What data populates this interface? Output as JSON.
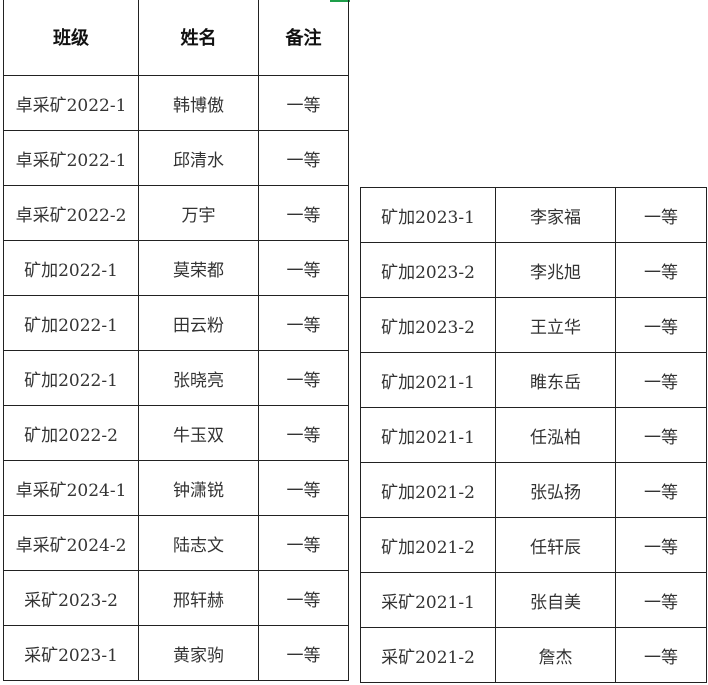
{
  "header": {
    "class": "班级",
    "name": "姓名",
    "note": "备注"
  },
  "left_rows": [
    {
      "class": "卓采矿2022-1",
      "name": "韩博傲",
      "note": "一等"
    },
    {
      "class": "卓采矿2022-1",
      "name": "邱清水",
      "note": "一等"
    },
    {
      "class": "卓采矿2022-2",
      "name": "万宇",
      "note": "一等"
    },
    {
      "class": "矿加2022-1",
      "name": "莫荣都",
      "note": "一等"
    },
    {
      "class": "矿加2022-1",
      "name": "田云粉",
      "note": "一等"
    },
    {
      "class": "矿加2022-1",
      "name": "张晓亮",
      "note": "一等"
    },
    {
      "class": "矿加2022-2",
      "name": "牛玉双",
      "note": "一等"
    },
    {
      "class": "卓采矿2024-1",
      "name": "钟潇锐",
      "note": "一等"
    },
    {
      "class": "卓采矿2024-2",
      "name": "陆志文",
      "note": "一等"
    },
    {
      "class": "采矿2023-2",
      "name": "邢轩赫",
      "note": "一等"
    },
    {
      "class": "采矿2023-1",
      "name": "黄家驹",
      "note": "一等"
    }
  ],
  "right_rows": [
    {
      "class": "矿加2023-1",
      "name": "李家福",
      "note": "一等"
    },
    {
      "class": "矿加2023-2",
      "name": "李兆旭",
      "note": "一等"
    },
    {
      "class": "矿加2023-2",
      "name": "王立华",
      "note": "一等"
    },
    {
      "class": "矿加2021-1",
      "name": "睢东岳",
      "note": "一等"
    },
    {
      "class": "矿加2021-1",
      "name": "任泓柏",
      "note": "一等"
    },
    {
      "class": "矿加2021-2",
      "name": "张弘扬",
      "note": "一等"
    },
    {
      "class": "矿加2021-2",
      "name": "任轩辰",
      "note": "一等"
    },
    {
      "class": "采矿2021-1",
      "name": "张自美",
      "note": "一等"
    },
    {
      "class": "采矿2021-2",
      "name": "詹杰",
      "note": "一等"
    }
  ]
}
